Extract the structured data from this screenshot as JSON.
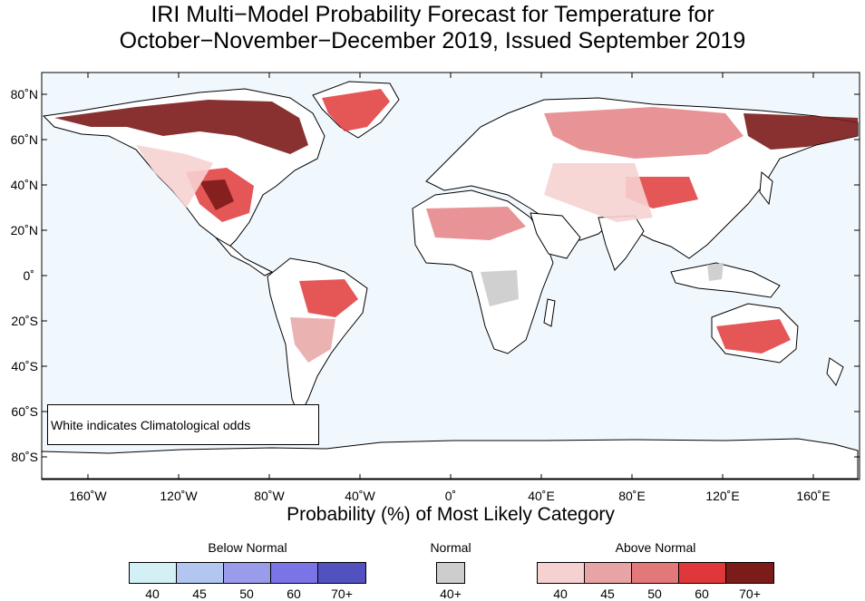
{
  "title": {
    "line1": "IRI Multi−Model Probability Forecast for Temperature for",
    "line2": "October−November−December 2019, Issued September 2019"
  },
  "map": {
    "ocean_color": "#f1f8fd",
    "land_color": "#ffffff",
    "lat_labels": [
      "80˚N",
      "60˚N",
      "40˚N",
      "20˚N",
      "0˚",
      "20˚S",
      "40˚S",
      "60˚S",
      "80˚S"
    ],
    "lon_labels": [
      "160˚W",
      "120˚W",
      "80˚W",
      "40˚W",
      "0˚",
      "40˚E",
      "80˚E",
      "120˚E",
      "160˚E"
    ],
    "note": "White indicates Climatological odds"
  },
  "xlabel": "Probability (%) of Most Likely Category",
  "legend": {
    "below": {
      "title": "Below Normal",
      "colors": [
        "#d4f0f7",
        "#b3c6ef",
        "#989ceb",
        "#7b74e6",
        "#5152c0"
      ],
      "ticks": [
        "40",
        "45",
        "50",
        "60",
        "70+"
      ]
    },
    "normal": {
      "title": "Normal",
      "color": "#cdcdcd",
      "tick": "40+"
    },
    "above": {
      "title": "Above Normal",
      "colors": [
        "#f6d1d1",
        "#e8a4a5",
        "#e2787a",
        "#e0383a",
        "#7b1b1a"
      ],
      "ticks": [
        "40",
        "45",
        "50",
        "60",
        "70+"
      ]
    }
  }
}
